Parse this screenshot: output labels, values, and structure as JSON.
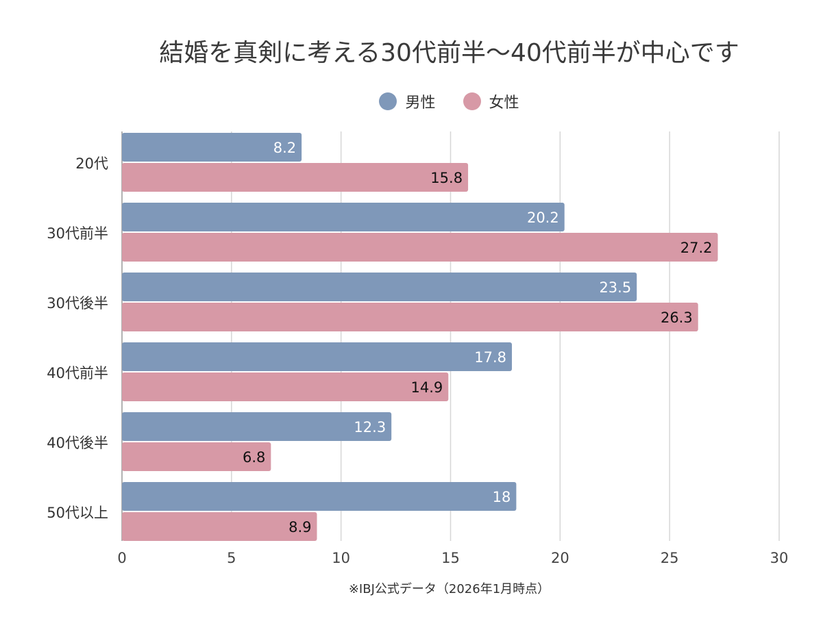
{
  "chart_data": {
    "type": "bar",
    "orientation": "horizontal",
    "title": "結婚を真剣に考える30代前半〜40代前半が中心です",
    "categories": [
      "20代",
      "30代前半",
      "30代後半",
      "40代前半",
      "40代後半",
      "50代以上"
    ],
    "series": [
      {
        "name": "男性",
        "color": "#7f98b9",
        "label_color": "#ffffff",
        "values": [
          8.2,
          20.2,
          23.5,
          17.8,
          12.3,
          18
        ]
      },
      {
        "name": "女性",
        "color": "#d799a6",
        "label_color": "#111111",
        "values": [
          15.8,
          27.2,
          26.3,
          14.9,
          6.8,
          8.9
        ]
      }
    ],
    "xlim": [
      0,
      30
    ],
    "xticks": [
      0,
      5,
      10,
      15,
      20,
      25,
      30
    ],
    "grid": true,
    "legend_position": "top",
    "footnote": "※IBJ公式データ（2026年1月時点）"
  }
}
